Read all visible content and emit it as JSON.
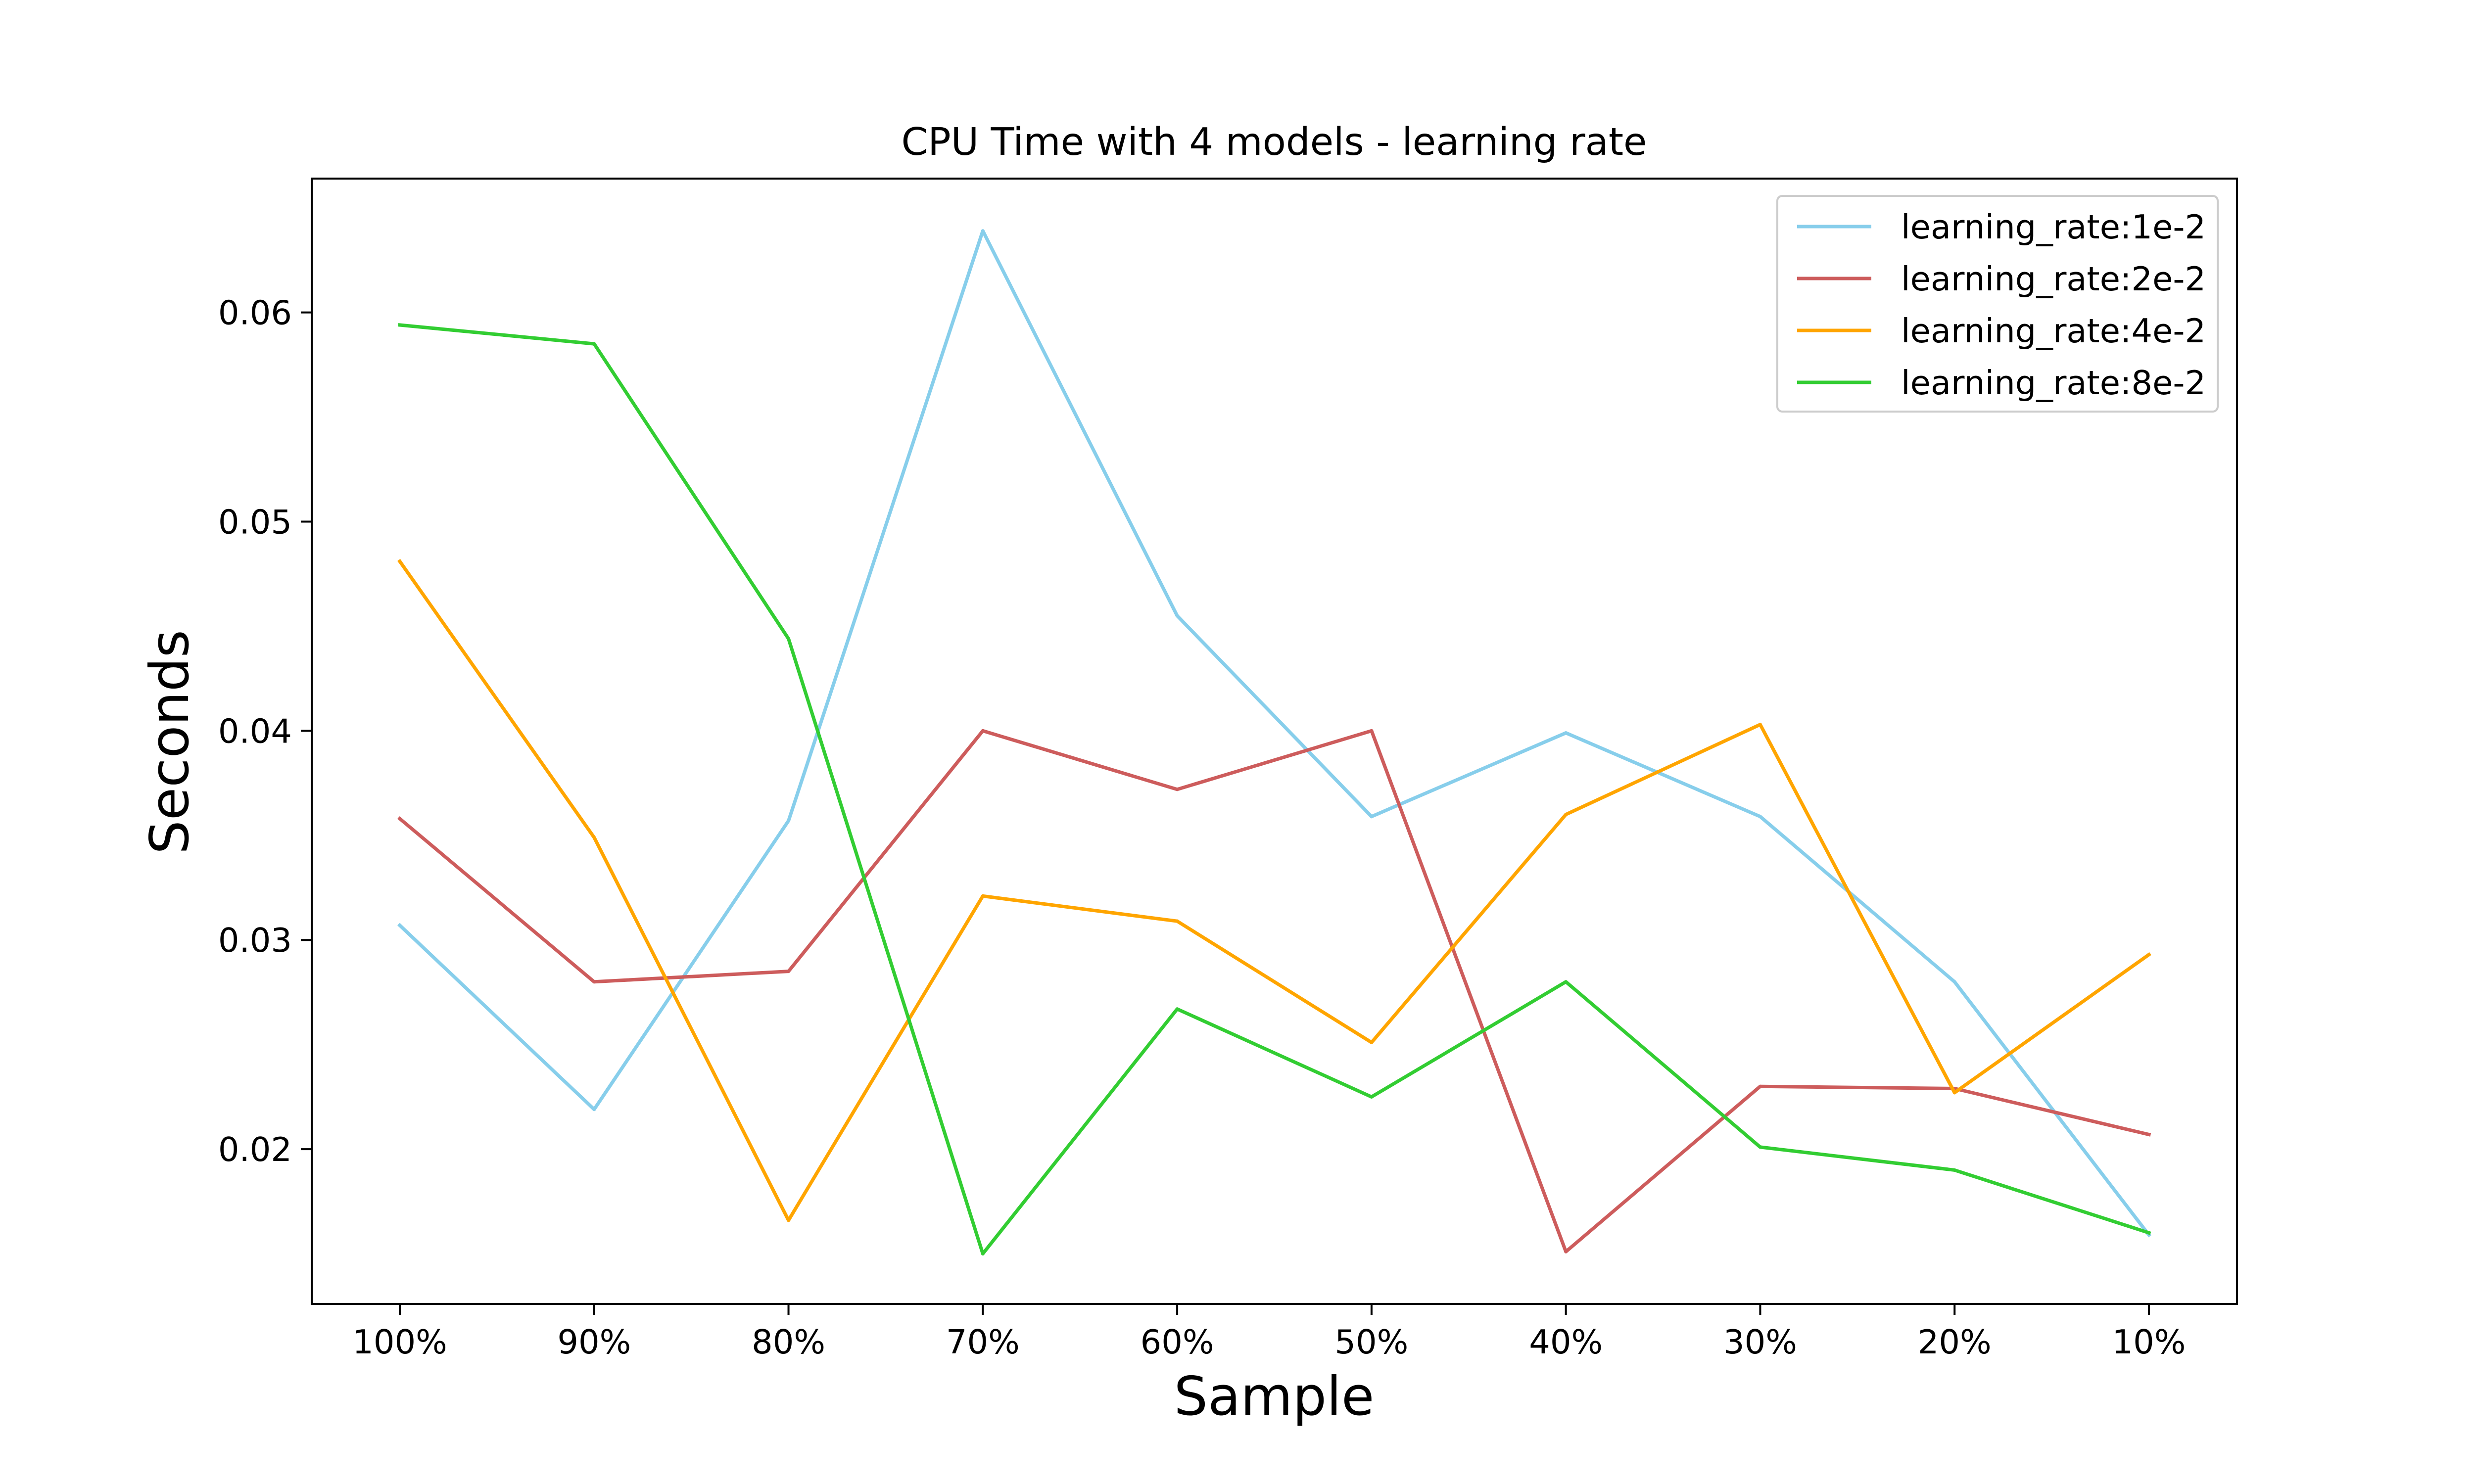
{
  "chart_data": {
    "type": "line",
    "title": "CPU Time with 4 models - learning rate",
    "xlabel": "Sample",
    "ylabel": "Seconds",
    "categories": [
      "100%",
      "90%",
      "80%",
      "70%",
      "60%",
      "50%",
      "40%",
      "30%",
      "20%",
      "10%"
    ],
    "ylim": [
      0.0126,
      0.0664
    ],
    "yticks": [
      0.02,
      0.03,
      0.04,
      0.05,
      0.06
    ],
    "ytick_labels": [
      "0.02",
      "0.03",
      "0.04",
      "0.05",
      "0.06"
    ],
    "grid": false,
    "legend_position": "top-right",
    "series": [
      {
        "name": "learning_rate:1e-2",
        "color": "#87CEEB",
        "values": [
          0.0307,
          0.0219,
          0.0357,
          0.0639,
          0.0455,
          0.0359,
          0.0399,
          0.0359,
          0.028,
          0.0159
        ]
      },
      {
        "name": "learning_rate:2e-2",
        "color": "#CD5C5C",
        "values": [
          0.0358,
          0.028,
          0.0285,
          0.04,
          0.0372,
          0.04,
          0.0151,
          0.023,
          0.0229,
          0.0207
        ]
      },
      {
        "name": "learning_rate:4e-2",
        "color": "#FFA500",
        "values": [
          0.0481,
          0.0349,
          0.0166,
          0.0321,
          0.0309,
          0.0251,
          0.036,
          0.0403,
          0.0227,
          0.0293
        ]
      },
      {
        "name": "learning_rate:8e-2",
        "color": "#32CD32",
        "values": [
          0.0594,
          0.0585,
          0.0444,
          0.015,
          0.0267,
          0.0225,
          0.028,
          0.0201,
          0.019,
          0.016
        ]
      }
    ]
  }
}
